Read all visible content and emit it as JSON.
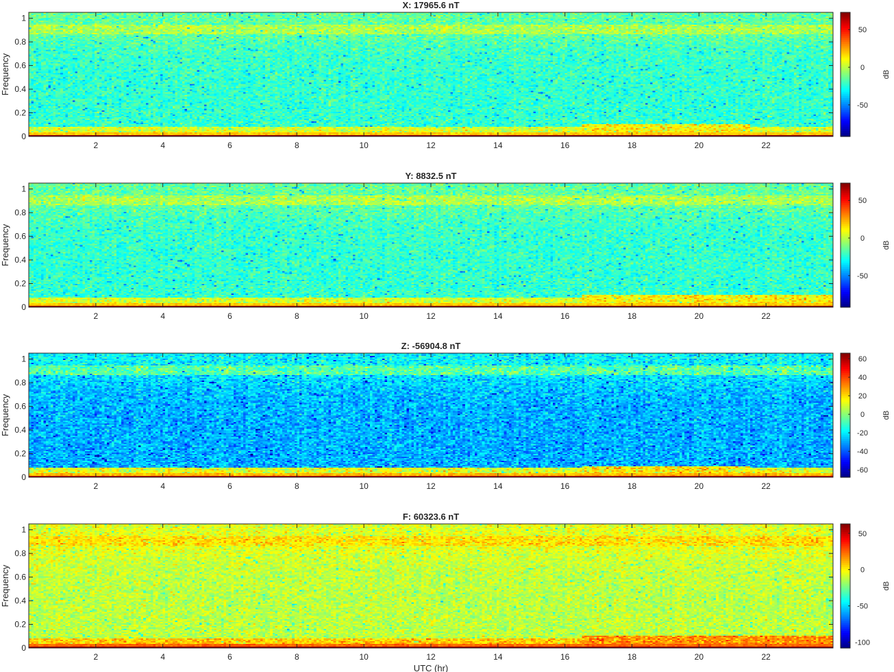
{
  "figure": {
    "xlabel": "UTC (hr)"
  },
  "chart_data": [
    {
      "type": "heatmap",
      "title": "X: 17965.6 nT",
      "xlabel": "",
      "ylabel": "Frequency",
      "xlim": [
        0,
        24
      ],
      "ylim": [
        0,
        1.05
      ],
      "xticks": [
        2,
        4,
        6,
        8,
        10,
        12,
        14,
        16,
        18,
        20,
        22
      ],
      "yticks": [
        0,
        0.2,
        0.4,
        0.6,
        0.8,
        1
      ],
      "colorbar": {
        "label": "dB",
        "clim": [
          -92,
          73
        ],
        "ticks": [
          -50,
          0,
          50
        ]
      },
      "bands": [
        {
          "freq_range": [
            0,
            0.005
          ],
          "level_db": 70
        },
        {
          "freq_range": [
            0.005,
            0.04
          ],
          "level_db": 20
        },
        {
          "freq_range": [
            0.04,
            0.08
          ],
          "level_db": 5
        },
        {
          "freq_range": [
            0.08,
            0.86
          ],
          "level_db": -22
        },
        {
          "freq_range": [
            0.86,
            0.95
          ],
          "level_db": -2
        },
        {
          "freq_range": [
            0.95,
            1.05
          ],
          "level_db": -14
        }
      ],
      "events": [
        {
          "utc_range": [
            16.5,
            21.5
          ],
          "freq_max": 0.1,
          "level_db": 12
        }
      ],
      "colors": {
        "map": "jet"
      }
    },
    {
      "type": "heatmap",
      "title": "Y: 8832.5 nT",
      "xlabel": "",
      "ylabel": "Frequency",
      "xlim": [
        0,
        24
      ],
      "ylim": [
        0,
        1.05
      ],
      "xticks": [
        2,
        4,
        6,
        8,
        10,
        12,
        14,
        16,
        18,
        20,
        22
      ],
      "yticks": [
        0,
        0.2,
        0.4,
        0.6,
        0.8,
        1
      ],
      "colorbar": {
        "label": "dB",
        "clim": [
          -92,
          73
        ],
        "ticks": [
          -50,
          0,
          50
        ]
      },
      "bands": [
        {
          "freq_range": [
            0,
            0.005
          ],
          "level_db": 70
        },
        {
          "freq_range": [
            0.005,
            0.04
          ],
          "level_db": 20
        },
        {
          "freq_range": [
            0.04,
            0.08
          ],
          "level_db": 5
        },
        {
          "freq_range": [
            0.08,
            0.86
          ],
          "level_db": -22
        },
        {
          "freq_range": [
            0.86,
            0.95
          ],
          "level_db": -2
        },
        {
          "freq_range": [
            0.95,
            1.05
          ],
          "level_db": -14
        }
      ],
      "events": [
        {
          "utc_range": [
            16.5,
            24
          ],
          "freq_max": 0.1,
          "level_db": 12
        }
      ],
      "colors": {
        "map": "jet"
      }
    },
    {
      "type": "heatmap",
      "title": "Z: -56904.8 nT",
      "xlabel": "",
      "ylabel": "Frequency",
      "xlim": [
        0,
        24
      ],
      "ylim": [
        0,
        1.05
      ],
      "xticks": [
        2,
        4,
        6,
        8,
        10,
        12,
        14,
        16,
        18,
        20,
        22
      ],
      "yticks": [
        0,
        0.2,
        0.4,
        0.6,
        0.8,
        1
      ],
      "colorbar": {
        "label": "dB",
        "clim": [
          -68,
          66
        ],
        "ticks": [
          -60,
          -40,
          -20,
          0,
          20,
          40,
          60
        ]
      },
      "bands": [
        {
          "freq_range": [
            0,
            0.005
          ],
          "level_db": 60
        },
        {
          "freq_range": [
            0.005,
            0.04
          ],
          "level_db": 25
        },
        {
          "freq_range": [
            0.04,
            0.08
          ],
          "level_db": 12
        },
        {
          "freq_range": [
            0.08,
            0.86
          ],
          "level_db": -28
        },
        {
          "freq_range": [
            0.86,
            0.95
          ],
          "level_db": -6
        },
        {
          "freq_range": [
            0.95,
            1.05
          ],
          "level_db": -18
        }
      ],
      "events": [
        {
          "utc_range": [
            16.5,
            21.5
          ],
          "freq_max": 0.09,
          "level_db": 18
        }
      ],
      "colors": {
        "map": "jet"
      }
    },
    {
      "type": "heatmap",
      "title": "F: 60323.6 nT",
      "xlabel": "UTC (hr)",
      "ylabel": "Frequency",
      "xlim": [
        0,
        24
      ],
      "ylim": [
        0,
        1.05
      ],
      "xticks": [
        2,
        4,
        6,
        8,
        10,
        12,
        14,
        16,
        18,
        20,
        22
      ],
      "yticks": [
        0,
        0.2,
        0.4,
        0.6,
        0.8,
        1
      ],
      "colorbar": {
        "label": "dB",
        "clim": [
          -108,
          63
        ],
        "ticks": [
          -100,
          -50,
          0,
          50
        ]
      },
      "bands": [
        {
          "freq_range": [
            0,
            0.005
          ],
          "level_db": 60
        },
        {
          "freq_range": [
            0.005,
            0.04
          ],
          "level_db": 25
        },
        {
          "freq_range": [
            0.04,
            0.08
          ],
          "level_db": 8
        },
        {
          "freq_range": [
            0.08,
            0.86
          ],
          "level_db": -12
        },
        {
          "freq_range": [
            0.86,
            0.95
          ],
          "level_db": 4
        },
        {
          "freq_range": [
            0.95,
            1.05
          ],
          "level_db": -6
        }
      ],
      "events": [
        {
          "utc_range": [
            16.5,
            24
          ],
          "freq_max": 0.1,
          "level_db": 18
        }
      ],
      "colors": {
        "map": "jet"
      }
    }
  ]
}
